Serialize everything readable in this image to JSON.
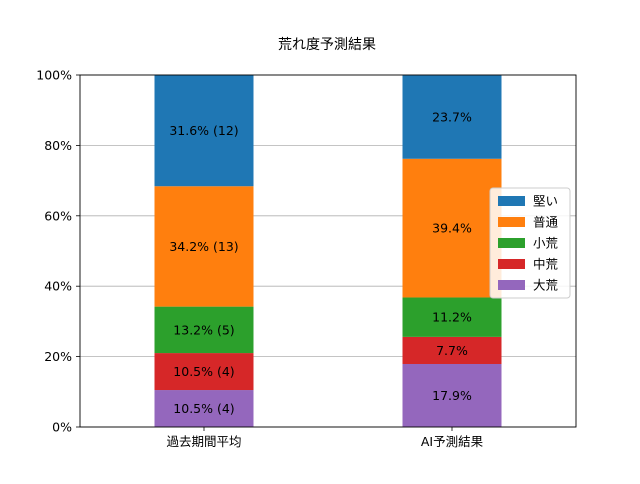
{
  "chart_data": {
    "type": "bar",
    "stacked": true,
    "title": "荒れ度予測結果",
    "xlabel": "",
    "ylabel": "",
    "categories": [
      "過去期間平均",
      "AI予測結果"
    ],
    "ylim": [
      0,
      100
    ],
    "y_ticks": [
      0,
      20,
      40,
      60,
      80,
      100
    ],
    "y_tick_labels": [
      "0%",
      "20%",
      "40%",
      "60%",
      "80%",
      "100%"
    ],
    "grid": "y",
    "legend_position": "right",
    "series": [
      {
        "name": "大荒",
        "color": "#9467bd",
        "values": [
          10.5,
          17.9
        ],
        "labels": [
          "10.5% (4)",
          "17.9%"
        ]
      },
      {
        "name": "中荒",
        "color": "#d62728",
        "values": [
          10.5,
          7.7
        ],
        "labels": [
          "10.5% (4)",
          "7.7%"
        ]
      },
      {
        "name": "小荒",
        "color": "#2ca02c",
        "values": [
          13.2,
          11.2
        ],
        "labels": [
          "13.2% (5)",
          "11.2%"
        ]
      },
      {
        "name": "普通",
        "color": "#ff7f0e",
        "values": [
          34.2,
          39.4
        ],
        "labels": [
          "34.2% (13)",
          "39.4%"
        ]
      },
      {
        "name": "堅い",
        "color": "#1f77b4",
        "values": [
          31.6,
          23.7
        ],
        "labels": [
          "31.6% (12)",
          "23.7%"
        ]
      }
    ],
    "legend_order": [
      "堅い",
      "普通",
      "小荒",
      "中荒",
      "大荒"
    ]
  }
}
